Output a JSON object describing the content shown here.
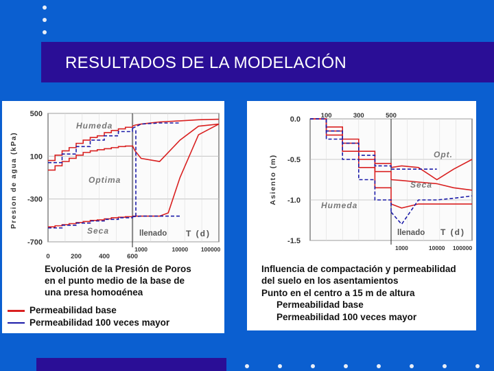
{
  "slide": {
    "title": "RESULTADOS DE LA MODELACIÓN",
    "colors": {
      "background": "#0b5fd0",
      "title_bar": "#2a0e96",
      "dots": "#e8eef8",
      "base": "#d92020",
      "mayor": "#1a1aa8"
    }
  },
  "charts": {
    "left": {
      "ylabel": "Presion de agua (kPa)",
      "y_ticks": [
        "500",
        "100",
        "-300",
        "-700"
      ],
      "x_ticks_top": [
        "0",
        "200",
        "400",
        "600"
      ],
      "x_ticks_bottom": [
        "1000",
        "10000",
        "100000"
      ],
      "labels": {
        "humeda": "Humeda",
        "optima": "Optima",
        "seca": "Seca",
        "llenado": "llenado",
        "t_d": "T (d)"
      },
      "caption": [
        "Evolución de la Presión de Poros",
        "en el punto medio de la base de",
        "una presa homogénea"
      ],
      "legend": {
        "base": "Permeabilidad base",
        "mayor": "Permeabilidad 100 veces mayor"
      }
    },
    "right": {
      "ylabel": "Asiento (m)",
      "y_ticks": [
        "0.0",
        "-0.5",
        "-1.0",
        "-1.5"
      ],
      "x_ticks_top": [
        "100",
        "300",
        "500"
      ],
      "x_ticks_bottom": [
        "1000",
        "10000",
        "100000"
      ],
      "labels": {
        "opt": "Opt.",
        "seca": "Seca",
        "humeda": "Humeda",
        "llenado": "llenado",
        "t_d": "T (d)"
      },
      "caption": [
        "Influencia de compactación y permeabilidad",
        "del suelo en los asentamientos",
        "Punto en el centro a 15 m de altura"
      ],
      "legend": {
        "base": "Permeabilidad base",
        "mayor": "Permeabilidad 100 veces mayor"
      }
    }
  },
  "chart_data": [
    {
      "type": "line",
      "ylabel": "Presion de agua (kPa)",
      "ylim": [
        -700,
        500
      ],
      "x_scale": "linear (0-600, construction) then log (1000-100000, after llenado)",
      "series": [
        {
          "name": "Permeabilidad base",
          "curve": "Humeda",
          "x": [
            0,
            50,
            100,
            150,
            200,
            250,
            300,
            350,
            400,
            450,
            500,
            550,
            600,
            700,
            1000,
            3000,
            10000,
            30000,
            100000
          ],
          "y": [
            60,
            110,
            150,
            180,
            220,
            250,
            275,
            290,
            320,
            340,
            355,
            370,
            380,
            390,
            400,
            420,
            430,
            440,
            445
          ]
        },
        {
          "name": "Permeabilidad base",
          "curve": "Optima",
          "x": [
            0,
            50,
            100,
            150,
            200,
            250,
            300,
            350,
            400,
            450,
            500,
            550,
            600,
            700,
            1000,
            3000,
            10000,
            30000,
            100000
          ],
          "y": [
            -30,
            10,
            50,
            80,
            110,
            135,
            150,
            160,
            170,
            180,
            190,
            195,
            200,
            150,
            80,
            50,
            250,
            380,
            400
          ]
        },
        {
          "name": "Permeabilidad base",
          "curve": "Seca",
          "x": [
            0,
            50,
            100,
            150,
            200,
            250,
            300,
            350,
            400,
            450,
            500,
            550,
            600,
            1000,
            3000,
            5000,
            10000,
            30000,
            100000
          ],
          "y": [
            -560,
            -550,
            -540,
            -530,
            -520,
            -510,
            -500,
            -495,
            -485,
            -475,
            -470,
            -465,
            -460,
            -460,
            -460,
            -430,
            -100,
            300,
            400
          ]
        },
        {
          "name": "Permeabilidad 100 veces mayor",
          "curve": "Humeda",
          "x": [
            0,
            100,
            200,
            300,
            400,
            500,
            600,
            1000,
            3000,
            10000
          ],
          "y": [
            40,
            120,
            190,
            250,
            290,
            330,
            360,
            400,
            410,
            410
          ]
        },
        {
          "name": "Permeabilidad 100 veces mayor",
          "curve": "Seca",
          "x": [
            0,
            100,
            200,
            300,
            400,
            500,
            600,
            1000,
            3000,
            10000
          ],
          "y": [
            -570,
            -545,
            -525,
            -505,
            -490,
            -475,
            -465,
            -460,
            -460,
            -460
          ]
        }
      ]
    },
    {
      "type": "line",
      "ylabel": "Asiento (m)",
      "ylim": [
        -1.5,
        0.0
      ],
      "x_scale": "linear (0-500, construction) then log (1000-100000, after llenado)",
      "series": [
        {
          "name": "Permeabilidad base",
          "curve": "Opt.",
          "x": [
            0,
            100,
            200,
            300,
            400,
            500,
            1000,
            3000,
            10000,
            30000,
            100000
          ],
          "y": [
            0.0,
            -0.1,
            -0.25,
            -0.4,
            -0.55,
            -0.6,
            -0.58,
            -0.6,
            -0.75,
            -0.62,
            -0.5
          ]
        },
        {
          "name": "Permeabilidad base",
          "curve": "Seca",
          "x": [
            0,
            100,
            200,
            300,
            400,
            500,
            1000,
            3000,
            10000,
            30000,
            100000
          ],
          "y": [
            0.0,
            -0.15,
            -0.3,
            -0.5,
            -0.65,
            -0.75,
            -0.76,
            -0.78,
            -0.8,
            -0.85,
            -0.88
          ]
        },
        {
          "name": "Permeabilidad base",
          "curve": "Humeda",
          "x": [
            0,
            100,
            200,
            300,
            400,
            500,
            1000,
            3000,
            10000,
            30000,
            100000
          ],
          "y": [
            0.0,
            -0.2,
            -0.4,
            -0.6,
            -0.85,
            -1.05,
            -1.1,
            -1.05,
            -1.05,
            -1.05,
            -1.05
          ]
        },
        {
          "name": "Permeabilidad 100 veces mayor",
          "curve": "Opt.",
          "x": [
            0,
            100,
            200,
            300,
            400,
            500,
            1000,
            3000,
            10000
          ],
          "y": [
            0.0,
            -0.15,
            -0.3,
            -0.45,
            -0.58,
            -0.62,
            -0.62,
            -0.62,
            -0.62
          ]
        },
        {
          "name": "Permeabilidad 100 veces mayor",
          "curve": "Humeda",
          "x": [
            0,
            100,
            200,
            300,
            400,
            500,
            1000,
            3000,
            10000,
            30000,
            100000
          ],
          "y": [
            0.0,
            -0.25,
            -0.5,
            -0.75,
            -1.0,
            -1.15,
            -1.3,
            -1.0,
            -1.0,
            -0.98,
            -0.95
          ]
        }
      ]
    }
  ]
}
